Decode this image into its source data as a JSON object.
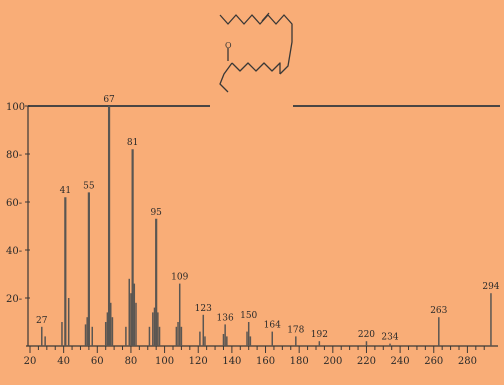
{
  "structure_label": "O",
  "chart_data": {
    "type": "bar",
    "title": "",
    "xlabel": "",
    "ylabel": "",
    "xlim": [
      20,
      297
    ],
    "ylim": [
      0,
      100
    ],
    "grid": false,
    "x_ticks": [
      20,
      40,
      60,
      80,
      100,
      120,
      140,
      160,
      180,
      200,
      220,
      240,
      260,
      280
    ],
    "y_ticks": [
      20,
      40,
      60,
      80,
      100
    ],
    "ytick_labels": [
      "20-",
      "40-",
      "60-",
      "80-",
      "100"
    ],
    "peaks": [
      {
        "x": 27,
        "y": 8,
        "label": "27"
      },
      {
        "x": 29,
        "y": 4,
        "label": ""
      },
      {
        "x": 39,
        "y": 10,
        "label": ""
      },
      {
        "x": 41,
        "y": 62,
        "label": "41"
      },
      {
        "x": 43,
        "y": 20,
        "label": ""
      },
      {
        "x": 53,
        "y": 9,
        "label": ""
      },
      {
        "x": 54,
        "y": 12,
        "label": ""
      },
      {
        "x": 55,
        "y": 64,
        "label": "55"
      },
      {
        "x": 57,
        "y": 8,
        "label": ""
      },
      {
        "x": 65,
        "y": 10,
        "label": ""
      },
      {
        "x": 66,
        "y": 14,
        "label": ""
      },
      {
        "x": 67,
        "y": 100,
        "label": "67"
      },
      {
        "x": 68,
        "y": 18,
        "label": ""
      },
      {
        "x": 69,
        "y": 12,
        "label": ""
      },
      {
        "x": 77,
        "y": 8,
        "label": ""
      },
      {
        "x": 79,
        "y": 28,
        "label": ""
      },
      {
        "x": 80,
        "y": 22,
        "label": ""
      },
      {
        "x": 81,
        "y": 82,
        "label": "81"
      },
      {
        "x": 82,
        "y": 26,
        "label": ""
      },
      {
        "x": 83,
        "y": 18,
        "label": ""
      },
      {
        "x": 91,
        "y": 8,
        "label": ""
      },
      {
        "x": 93,
        "y": 14,
        "label": ""
      },
      {
        "x": 94,
        "y": 16,
        "label": ""
      },
      {
        "x": 95,
        "y": 53,
        "label": "95"
      },
      {
        "x": 96,
        "y": 14,
        "label": ""
      },
      {
        "x": 97,
        "y": 8,
        "label": ""
      },
      {
        "x": 107,
        "y": 8,
        "label": ""
      },
      {
        "x": 108,
        "y": 10,
        "label": ""
      },
      {
        "x": 109,
        "y": 26,
        "label": "109"
      },
      {
        "x": 110,
        "y": 8,
        "label": ""
      },
      {
        "x": 121,
        "y": 6,
        "label": ""
      },
      {
        "x": 123,
        "y": 13,
        "label": "123"
      },
      {
        "x": 124,
        "y": 4,
        "label": ""
      },
      {
        "x": 135,
        "y": 5,
        "label": ""
      },
      {
        "x": 136,
        "y": 9,
        "label": "136"
      },
      {
        "x": 137,
        "y": 4,
        "label": ""
      },
      {
        "x": 149,
        "y": 6,
        "label": ""
      },
      {
        "x": 150,
        "y": 10,
        "label": "150"
      },
      {
        "x": 151,
        "y": 4,
        "label": ""
      },
      {
        "x": 164,
        "y": 6,
        "label": "164"
      },
      {
        "x": 178,
        "y": 4,
        "label": "178"
      },
      {
        "x": 192,
        "y": 2,
        "label": "192"
      },
      {
        "x": 220,
        "y": 2,
        "label": "220"
      },
      {
        "x": 234,
        "y": 1,
        "label": "234"
      },
      {
        "x": 263,
        "y": 12,
        "label": "263"
      },
      {
        "x": 294,
        "y": 22,
        "label": "294"
      }
    ]
  },
  "colors": {
    "background": "#f9ad77",
    "ink": "#2a2a2a",
    "peaks": "#5a5652"
  }
}
